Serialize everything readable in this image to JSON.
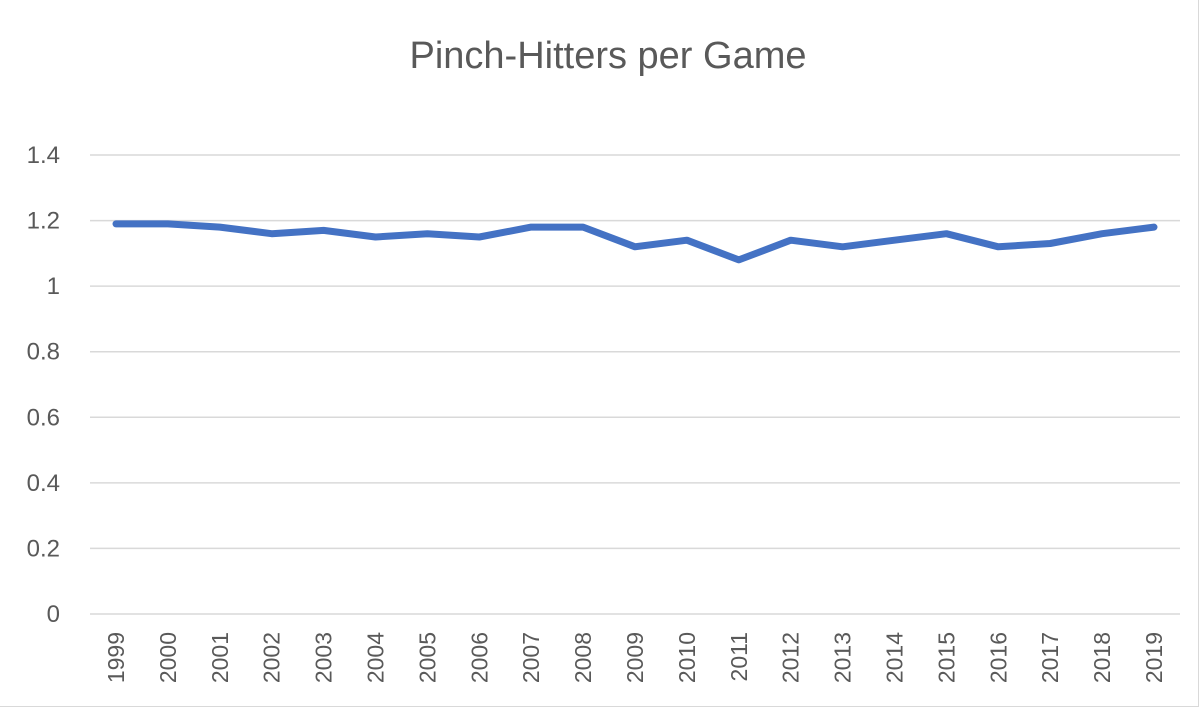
{
  "chart_data": {
    "type": "line",
    "title": "Pinch-Hitters per Game",
    "xlabel": "",
    "ylabel": "",
    "categories": [
      "1999",
      "2000",
      "2001",
      "2002",
      "2003",
      "2004",
      "2005",
      "2006",
      "2007",
      "2008",
      "2009",
      "2010",
      "2011",
      "2012",
      "2013",
      "2014",
      "2015",
      "2016",
      "2017",
      "2018",
      "2019"
    ],
    "series": [
      {
        "values": [
          1.19,
          1.19,
          1.18,
          1.16,
          1.17,
          1.15,
          1.16,
          1.15,
          1.18,
          1.18,
          1.12,
          1.14,
          1.08,
          1.14,
          1.12,
          1.14,
          1.16,
          1.12,
          1.13,
          1.16,
          1.18
        ],
        "color": "#4472c4"
      }
    ],
    "ylim": [
      0,
      1.4
    ],
    "yticks": [
      "0",
      "0.2",
      "0.4",
      "0.6",
      "0.8",
      "1",
      "1.2",
      "1.4"
    ],
    "ytick_values": [
      0,
      0.2,
      0.4,
      0.6,
      0.8,
      1,
      1.2,
      1.4
    ],
    "grid": true,
    "legend": "none"
  }
}
